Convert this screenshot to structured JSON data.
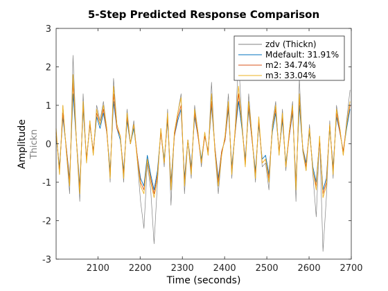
{
  "chart_data": {
    "type": "line",
    "title": "5-Step Predicted Response Comparison",
    "xlabel": "Time (seconds)",
    "ylabel": "Amplitude",
    "ylabel_sub": "Thickn",
    "xlim": [
      2001,
      2700
    ],
    "ylim": [
      -3,
      3
    ],
    "xticks": [
      2100,
      2200,
      2300,
      2400,
      2500,
      2600,
      2700
    ],
    "yticks": [
      -3,
      -2,
      -1,
      0,
      1,
      2,
      3
    ],
    "grid": false,
    "legend_position": "top-right",
    "series": [
      {
        "name": "zdv (Thickn)",
        "color": "#808080",
        "x": [
          2001,
          2009,
          2017,
          2025,
          2033,
          2041,
          2049,
          2057,
          2065,
          2073,
          2081,
          2089,
          2097,
          2105,
          2113,
          2121,
          2129,
          2137,
          2145,
          2153,
          2161,
          2169,
          2177,
          2185,
          2193,
          2201,
          2209,
          2217,
          2225,
          2233,
          2241,
          2249,
          2257,
          2265,
          2273,
          2281,
          2289,
          2297,
          2305,
          2313,
          2321,
          2329,
          2337,
          2345,
          2353,
          2361,
          2369,
          2377,
          2385,
          2393,
          2401,
          2409,
          2417,
          2425,
          2433,
          2441,
          2449,
          2457,
          2465,
          2473,
          2481,
          2489,
          2497,
          2505,
          2513,
          2521,
          2529,
          2537,
          2545,
          2553,
          2561,
          2569,
          2577,
          2585,
          2593,
          2601,
          2609,
          2617,
          2625,
          2633,
          2641,
          2649,
          2657,
          2665,
          2673,
          2681,
          2689,
          2697
        ],
        "y": [
          0.3,
          -0.8,
          1.0,
          -0.2,
          -1.3,
          2.3,
          0.1,
          -1.5,
          1.3,
          -0.5,
          0.6,
          -0.3,
          1.0,
          0.6,
          1.1,
          0.4,
          -1.0,
          1.7,
          0.5,
          0.2,
          -1.0,
          0.9,
          0.0,
          0.6,
          -0.4,
          -1.5,
          -2.2,
          -0.5,
          -1.2,
          -2.6,
          -1.0,
          0.4,
          -0.6,
          0.9,
          -1.6,
          0.3,
          0.8,
          1.3,
          -1.3,
          0.1,
          -0.9,
          1.0,
          0.3,
          -0.6,
          0.3,
          -0.3,
          1.6,
          -0.2,
          -1.3,
          -0.3,
          0.2,
          1.3,
          -0.9,
          0.4,
          2.2,
          0.6,
          -0.6,
          1.3,
          0.2,
          -1.0,
          0.7,
          -0.6,
          -0.5,
          -1.2,
          0.5,
          1.1,
          -0.3,
          0.9,
          -0.7,
          0.3,
          1.1,
          -1.5,
          1.7,
          -0.2,
          -0.7,
          0.5,
          -0.8,
          -1.9,
          0.2,
          -2.8,
          -1.4,
          0.6,
          -0.9,
          1.0,
          0.4,
          -0.3,
          0.6,
          1.4
        ]
      },
      {
        "name": "Mdefault: 31.91%",
        "color": "#0072BD",
        "x": [
          2001,
          2009,
          2017,
          2025,
          2033,
          2041,
          2049,
          2057,
          2065,
          2073,
          2081,
          2089,
          2097,
          2105,
          2113,
          2121,
          2129,
          2137,
          2145,
          2153,
          2161,
          2169,
          2177,
          2185,
          2193,
          2201,
          2209,
          2217,
          2225,
          2233,
          2241,
          2249,
          2257,
          2265,
          2273,
          2281,
          2289,
          2297,
          2305,
          2313,
          2321,
          2329,
          2337,
          2345,
          2353,
          2361,
          2369,
          2377,
          2385,
          2393,
          2401,
          2409,
          2417,
          2425,
          2433,
          2441,
          2449,
          2457,
          2465,
          2473,
          2481,
          2489,
          2497,
          2505,
          2513,
          2521,
          2529,
          2537,
          2545,
          2553,
          2561,
          2569,
          2577,
          2585,
          2593,
          2601,
          2609,
          2617,
          2625,
          2633,
          2641,
          2649,
          2657,
          2665,
          2673,
          2681,
          2689,
          2697
        ],
        "y": [
          0.2,
          -0.6,
          0.7,
          -0.1,
          -0.9,
          1.3,
          0.1,
          -1.1,
          0.9,
          -0.4,
          0.5,
          -0.2,
          0.7,
          0.4,
          0.8,
          0.3,
          -0.7,
          1.1,
          0.4,
          0.1,
          -0.7,
          0.6,
          0.0,
          0.4,
          -0.3,
          -0.9,
          -1.1,
          -0.3,
          -0.8,
          -1.2,
          -0.7,
          0.3,
          -0.4,
          0.6,
          -1.0,
          0.2,
          0.6,
          0.9,
          -0.9,
          0.1,
          -0.6,
          0.7,
          0.2,
          -0.4,
          0.2,
          -0.2,
          1.0,
          -0.1,
          -0.9,
          -0.2,
          0.1,
          0.9,
          -0.6,
          0.3,
          1.1,
          0.4,
          -0.4,
          0.9,
          0.1,
          -0.7,
          0.5,
          -0.4,
          -0.3,
          -0.8,
          0.3,
          0.8,
          -0.2,
          0.6,
          -0.5,
          0.2,
          0.8,
          -1.0,
          1.0,
          -0.1,
          -0.5,
          0.3,
          -0.6,
          -1.0,
          0.1,
          -1.2,
          -0.9,
          0.4,
          -0.6,
          0.7,
          0.3,
          -0.2,
          0.4,
          0.9
        ]
      },
      {
        "name": "m2: 34.74%",
        "color": "#D95319",
        "x": [
          2001,
          2009,
          2017,
          2025,
          2033,
          2041,
          2049,
          2057,
          2065,
          2073,
          2081,
          2089,
          2097,
          2105,
          2113,
          2121,
          2129,
          2137,
          2145,
          2153,
          2161,
          2169,
          2177,
          2185,
          2193,
          2201,
          2209,
          2217,
          2225,
          2233,
          2241,
          2249,
          2257,
          2265,
          2273,
          2281,
          2289,
          2297,
          2305,
          2313,
          2321,
          2329,
          2337,
          2345,
          2353,
          2361,
          2369,
          2377,
          2385,
          2393,
          2401,
          2409,
          2417,
          2425,
          2433,
          2441,
          2449,
          2457,
          2465,
          2473,
          2481,
          2489,
          2497,
          2505,
          2513,
          2521,
          2529,
          2537,
          2545,
          2553,
          2561,
          2569,
          2577,
          2585,
          2593,
          2601,
          2609,
          2617,
          2625,
          2633,
          2641,
          2649,
          2657,
          2665,
          2673,
          2681,
          2689,
          2697
        ],
        "y": [
          0.3,
          -0.7,
          0.8,
          -0.1,
          -1.0,
          1.6,
          0.1,
          -1.2,
          1.0,
          -0.4,
          0.5,
          -0.2,
          0.8,
          0.5,
          0.9,
          0.3,
          -0.8,
          1.3,
          0.4,
          0.2,
          -0.8,
          0.7,
          0.0,
          0.5,
          -0.3,
          -1.0,
          -1.2,
          -0.4,
          -0.9,
          -1.3,
          -0.8,
          0.3,
          -0.5,
          0.7,
          -1.1,
          0.2,
          0.7,
          1.0,
          -1.0,
          0.1,
          -0.7,
          0.8,
          0.2,
          -0.5,
          0.2,
          -0.2,
          1.1,
          -0.1,
          -1.0,
          -0.2,
          0.1,
          1.0,
          -0.7,
          0.3,
          1.3,
          0.5,
          -0.5,
          1.0,
          0.1,
          -0.8,
          0.6,
          -0.5,
          -0.4,
          -0.9,
          0.4,
          0.9,
          -0.2,
          0.7,
          -0.6,
          0.2,
          0.9,
          -1.1,
          1.2,
          -0.1,
          -0.6,
          0.4,
          -0.7,
          -1.1,
          0.1,
          -1.3,
          -1.0,
          0.5,
          -0.7,
          0.8,
          0.3,
          -0.2,
          0.5,
          1.0
        ]
      },
      {
        "name": "m3: 33.04%",
        "color": "#EDB120",
        "x": [
          2001,
          2009,
          2017,
          2025,
          2033,
          2041,
          2049,
          2057,
          2065,
          2073,
          2081,
          2089,
          2097,
          2105,
          2113,
          2121,
          2129,
          2137,
          2145,
          2153,
          2161,
          2169,
          2177,
          2185,
          2193,
          2201,
          2209,
          2217,
          2225,
          2233,
          2241,
          2249,
          2257,
          2265,
          2273,
          2281,
          2289,
          2297,
          2305,
          2313,
          2321,
          2329,
          2337,
          2345,
          2353,
          2361,
          2369,
          2377,
          2385,
          2393,
          2401,
          2409,
          2417,
          2425,
          2433,
          2441,
          2449,
          2457,
          2465,
          2473,
          2481,
          2489,
          2497,
          2505,
          2513,
          2521,
          2529,
          2537,
          2545,
          2553,
          2561,
          2569,
          2577,
          2585,
          2593,
          2601,
          2609,
          2617,
          2625,
          2633,
          2641,
          2649,
          2657,
          2665,
          2673,
          2681,
          2689,
          2697
        ],
        "y": [
          0.4,
          -0.8,
          1.0,
          -0.2,
          -1.1,
          1.8,
          0.1,
          -1.3,
          1.1,
          -0.5,
          0.6,
          -0.3,
          0.9,
          0.5,
          1.0,
          0.4,
          -0.9,
          1.5,
          0.5,
          0.2,
          -0.9,
          0.8,
          0.0,
          0.5,
          -0.4,
          -1.1,
          -1.3,
          -0.4,
          -1.0,
          -1.4,
          -0.9,
          0.4,
          -0.5,
          0.8,
          -1.2,
          0.3,
          0.8,
          1.2,
          -1.1,
          0.1,
          -0.8,
          0.9,
          0.3,
          -0.5,
          0.3,
          -0.3,
          1.3,
          -0.2,
          -1.1,
          -0.3,
          0.2,
          1.1,
          -0.8,
          0.4,
          1.5,
          0.5,
          -0.6,
          1.1,
          0.2,
          -0.9,
          0.7,
          -0.5,
          -0.4,
          -1.0,
          0.4,
          1.0,
          -0.3,
          0.8,
          -0.6,
          0.3,
          1.0,
          -1.2,
          1.3,
          -0.1,
          -0.7,
          0.4,
          -0.7,
          -1.2,
          0.2,
          -1.4,
          -1.1,
          0.5,
          -0.8,
          0.9,
          0.4,
          -0.3,
          0.5,
          1.1
        ]
      }
    ]
  }
}
